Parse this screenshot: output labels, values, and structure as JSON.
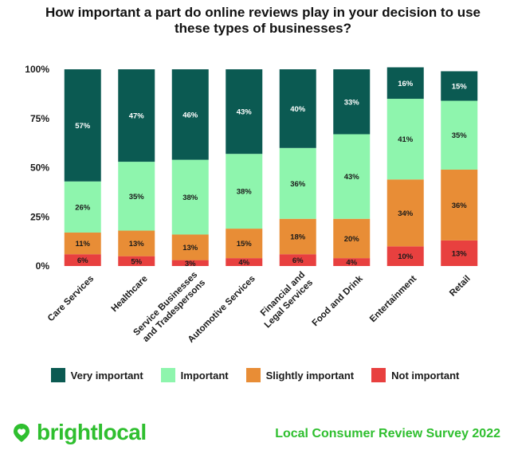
{
  "chart_data": {
    "type": "bar",
    "stacked": true,
    "title": "How important a part do online reviews play in your decision to use these types of businesses?",
    "categories": [
      [
        "Care Services"
      ],
      [
        "Healthcare"
      ],
      [
        "Service Businesses",
        "and Tradespersons"
      ],
      [
        "Automotive Services"
      ],
      [
        "Financial and",
        "Legal Services"
      ],
      [
        "Food and Drink"
      ],
      [
        "Entertainment"
      ],
      [
        "Retail"
      ]
    ],
    "series": [
      {
        "name": "Not important",
        "color": "#e8403f",
        "values": [
          6,
          5,
          3,
          4,
          6,
          4,
          10,
          13
        ],
        "labels": [
          "6%",
          "5%",
          "3%",
          "4%",
          "6%",
          "4%",
          "10%",
          "13%"
        ]
      },
      {
        "name": "Slightly important",
        "color": "#e88d36",
        "values": [
          11,
          13,
          13,
          15,
          18,
          20,
          34,
          36
        ],
        "labels": [
          "11%",
          "13%",
          "13%",
          "15%",
          "18%",
          "20%",
          "34%",
          "36%"
        ]
      },
      {
        "name": "Important",
        "color": "#8ef5ad",
        "values": [
          26,
          35,
          38,
          38,
          36,
          43,
          41,
          35
        ],
        "labels": [
          "26%",
          "35%",
          "38%",
          "38%",
          "36%",
          "43%",
          "41%",
          "35%"
        ]
      },
      {
        "name": "Very important",
        "color": "#0b5a52",
        "values": [
          57,
          47,
          46,
          43,
          40,
          33,
          16,
          15
        ],
        "labels": [
          "57%",
          "47%",
          "46%",
          "43%",
          "40%",
          "33%",
          "16%",
          "15%"
        ]
      }
    ],
    "yticks": [
      0,
      25,
      50,
      75,
      100
    ],
    "ytick_labels": [
      "0%",
      "25%",
      "50%",
      "75%",
      "100%"
    ],
    "ylim": [
      0,
      100
    ],
    "legend_position": "bottom",
    "grid": false
  },
  "legend_order": [
    "Very important",
    "Important",
    "Slightly important",
    "Not important"
  ],
  "footer": {
    "brand": "brightlocal",
    "survey": "Local Consumer Review Survey 2022",
    "brand_color": "#2fbf2f"
  }
}
